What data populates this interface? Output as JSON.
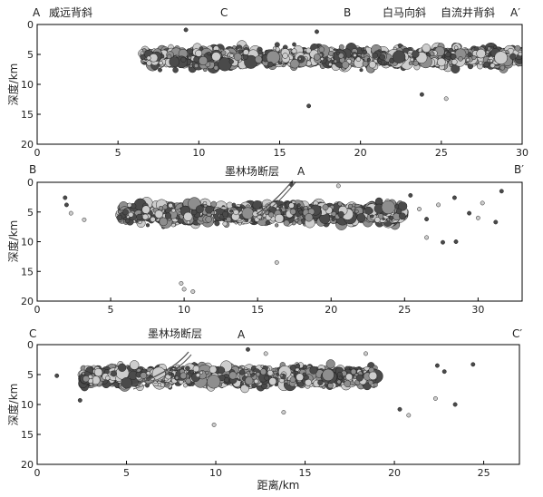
{
  "chart_data": [
    {
      "type": "scatter",
      "panel": "A-A'",
      "end_labels": [
        "A",
        "A′"
      ],
      "annotations": [
        {
          "text": "A",
          "x": 0.2
        },
        {
          "text": "威远背斜",
          "x": 2.5
        },
        {
          "text": "C",
          "x": 11.6
        },
        {
          "text": "B",
          "x": 19.2
        },
        {
          "text": "白马向斜",
          "x": 22.9
        },
        {
          "text": "自流井背斜",
          "x": 27.0
        },
        {
          "text": "A′",
          "x": 29.5
        }
      ],
      "xlim": [
        0,
        30
      ],
      "ylim": [
        0,
        20
      ],
      "y_inverted": true,
      "xticks": [
        0,
        5,
        10,
        15,
        20,
        25,
        30
      ],
      "yticks": [
        0,
        5,
        10,
        15,
        20
      ],
      "ylabel": "深度/km",
      "xlabel": "",
      "cluster": {
        "x_range": [
          6.5,
          30
        ],
        "depth_range": [
          2.5,
          9
        ],
        "core_depth": 5.5
      },
      "points": [
        [
          16.8,
          13.6
        ],
        [
          9.2,
          0.9
        ],
        [
          17.3,
          1.2
        ],
        [
          23.8,
          11.7
        ],
        [
          25.3,
          12.4
        ],
        [
          7.6,
          7.6
        ],
        [
          6.9,
          5.6
        ]
      ]
    },
    {
      "type": "scatter",
      "panel": "B-B'",
      "end_labels": [
        "B",
        "B′"
      ],
      "annotations": [
        {
          "text": "墨林场断层",
          "x": 13.5
        },
        {
          "text": "A",
          "x": 18.4
        }
      ],
      "fault": {
        "name": "墨林场断层"
      },
      "xlim": [
        0,
        33
      ],
      "ylim": [
        0,
        20
      ],
      "y_inverted": true,
      "xticks": [
        0,
        5,
        10,
        15,
        20,
        25,
        30
      ],
      "yticks": [
        0,
        5,
        10,
        15,
        20
      ],
      "ylabel": "深度/km",
      "xlabel": "",
      "cluster": {
        "x_range": [
          5.5,
          25
        ],
        "depth_range": [
          2.5,
          9
        ],
        "core_depth": 5.3
      },
      "points": [
        [
          2.0,
          3.8
        ],
        [
          2.3,
          5.2
        ],
        [
          3.2,
          6.3
        ],
        [
          1.9,
          2.6
        ],
        [
          9.8,
          17.0
        ],
        [
          10.0,
          18.0
        ],
        [
          10.6,
          18.4
        ],
        [
          16.3,
          13.5
        ],
        [
          26.5,
          9.3
        ],
        [
          27.6,
          10.1
        ],
        [
          28.5,
          10.0
        ],
        [
          26.5,
          6.2
        ],
        [
          27.3,
          3.8
        ],
        [
          28.4,
          2.6
        ],
        [
          29.4,
          5.2
        ],
        [
          30.3,
          3.5
        ],
        [
          31.2,
          6.7
        ],
        [
          31.6,
          1.5
        ],
        [
          30.0,
          6.0
        ],
        [
          26.0,
          4.5
        ],
        [
          25.4,
          2.2
        ],
        [
          20.5,
          0.6
        ],
        [
          17.3,
          0.4
        ]
      ]
    },
    {
      "type": "scatter",
      "panel": "C-C'",
      "end_labels": [
        "C",
        "C′"
      ],
      "annotations": [
        {
          "text": "墨林场断层",
          "x": 7.6
        },
        {
          "text": "A",
          "x": 11.5
        }
      ],
      "fault": {
        "name": "墨林场断层"
      },
      "xlim": [
        0,
        27
      ],
      "ylim": [
        0,
        20
      ],
      "y_inverted": true,
      "xticks": [
        0,
        5,
        10,
        15,
        20,
        25
      ],
      "yticks": [
        0,
        5,
        10,
        15,
        20
      ],
      "ylabel": "深度/km",
      "xlabel": "距离/km",
      "cluster": {
        "x_range": [
          2.5,
          19
        ],
        "depth_range": [
          2.5,
          8.5
        ],
        "core_depth": 5.3
      },
      "points": [
        [
          1.1,
          5.2
        ],
        [
          2.4,
          9.3
        ],
        [
          9.9,
          13.4
        ],
        [
          13.8,
          11.3
        ],
        [
          20.3,
          10.8
        ],
        [
          20.8,
          11.8
        ],
        [
          22.4,
          3.5
        ],
        [
          22.8,
          4.5
        ],
        [
          23.4,
          10.0
        ],
        [
          24.4,
          3.3
        ],
        [
          22.3,
          9.0
        ],
        [
          18.4,
          1.5
        ],
        [
          11.8,
          0.8
        ],
        [
          12.8,
          1.5
        ],
        [
          8.3,
          6.8
        ],
        [
          9.0,
          5.1
        ]
      ]
    }
  ],
  "colors": {
    "dark": "#4a4a4a",
    "medium": "#8e8e8e",
    "light": "#cdcdcd",
    "outline": "#222222",
    "axis": "#000000",
    "fault": "#555555"
  }
}
